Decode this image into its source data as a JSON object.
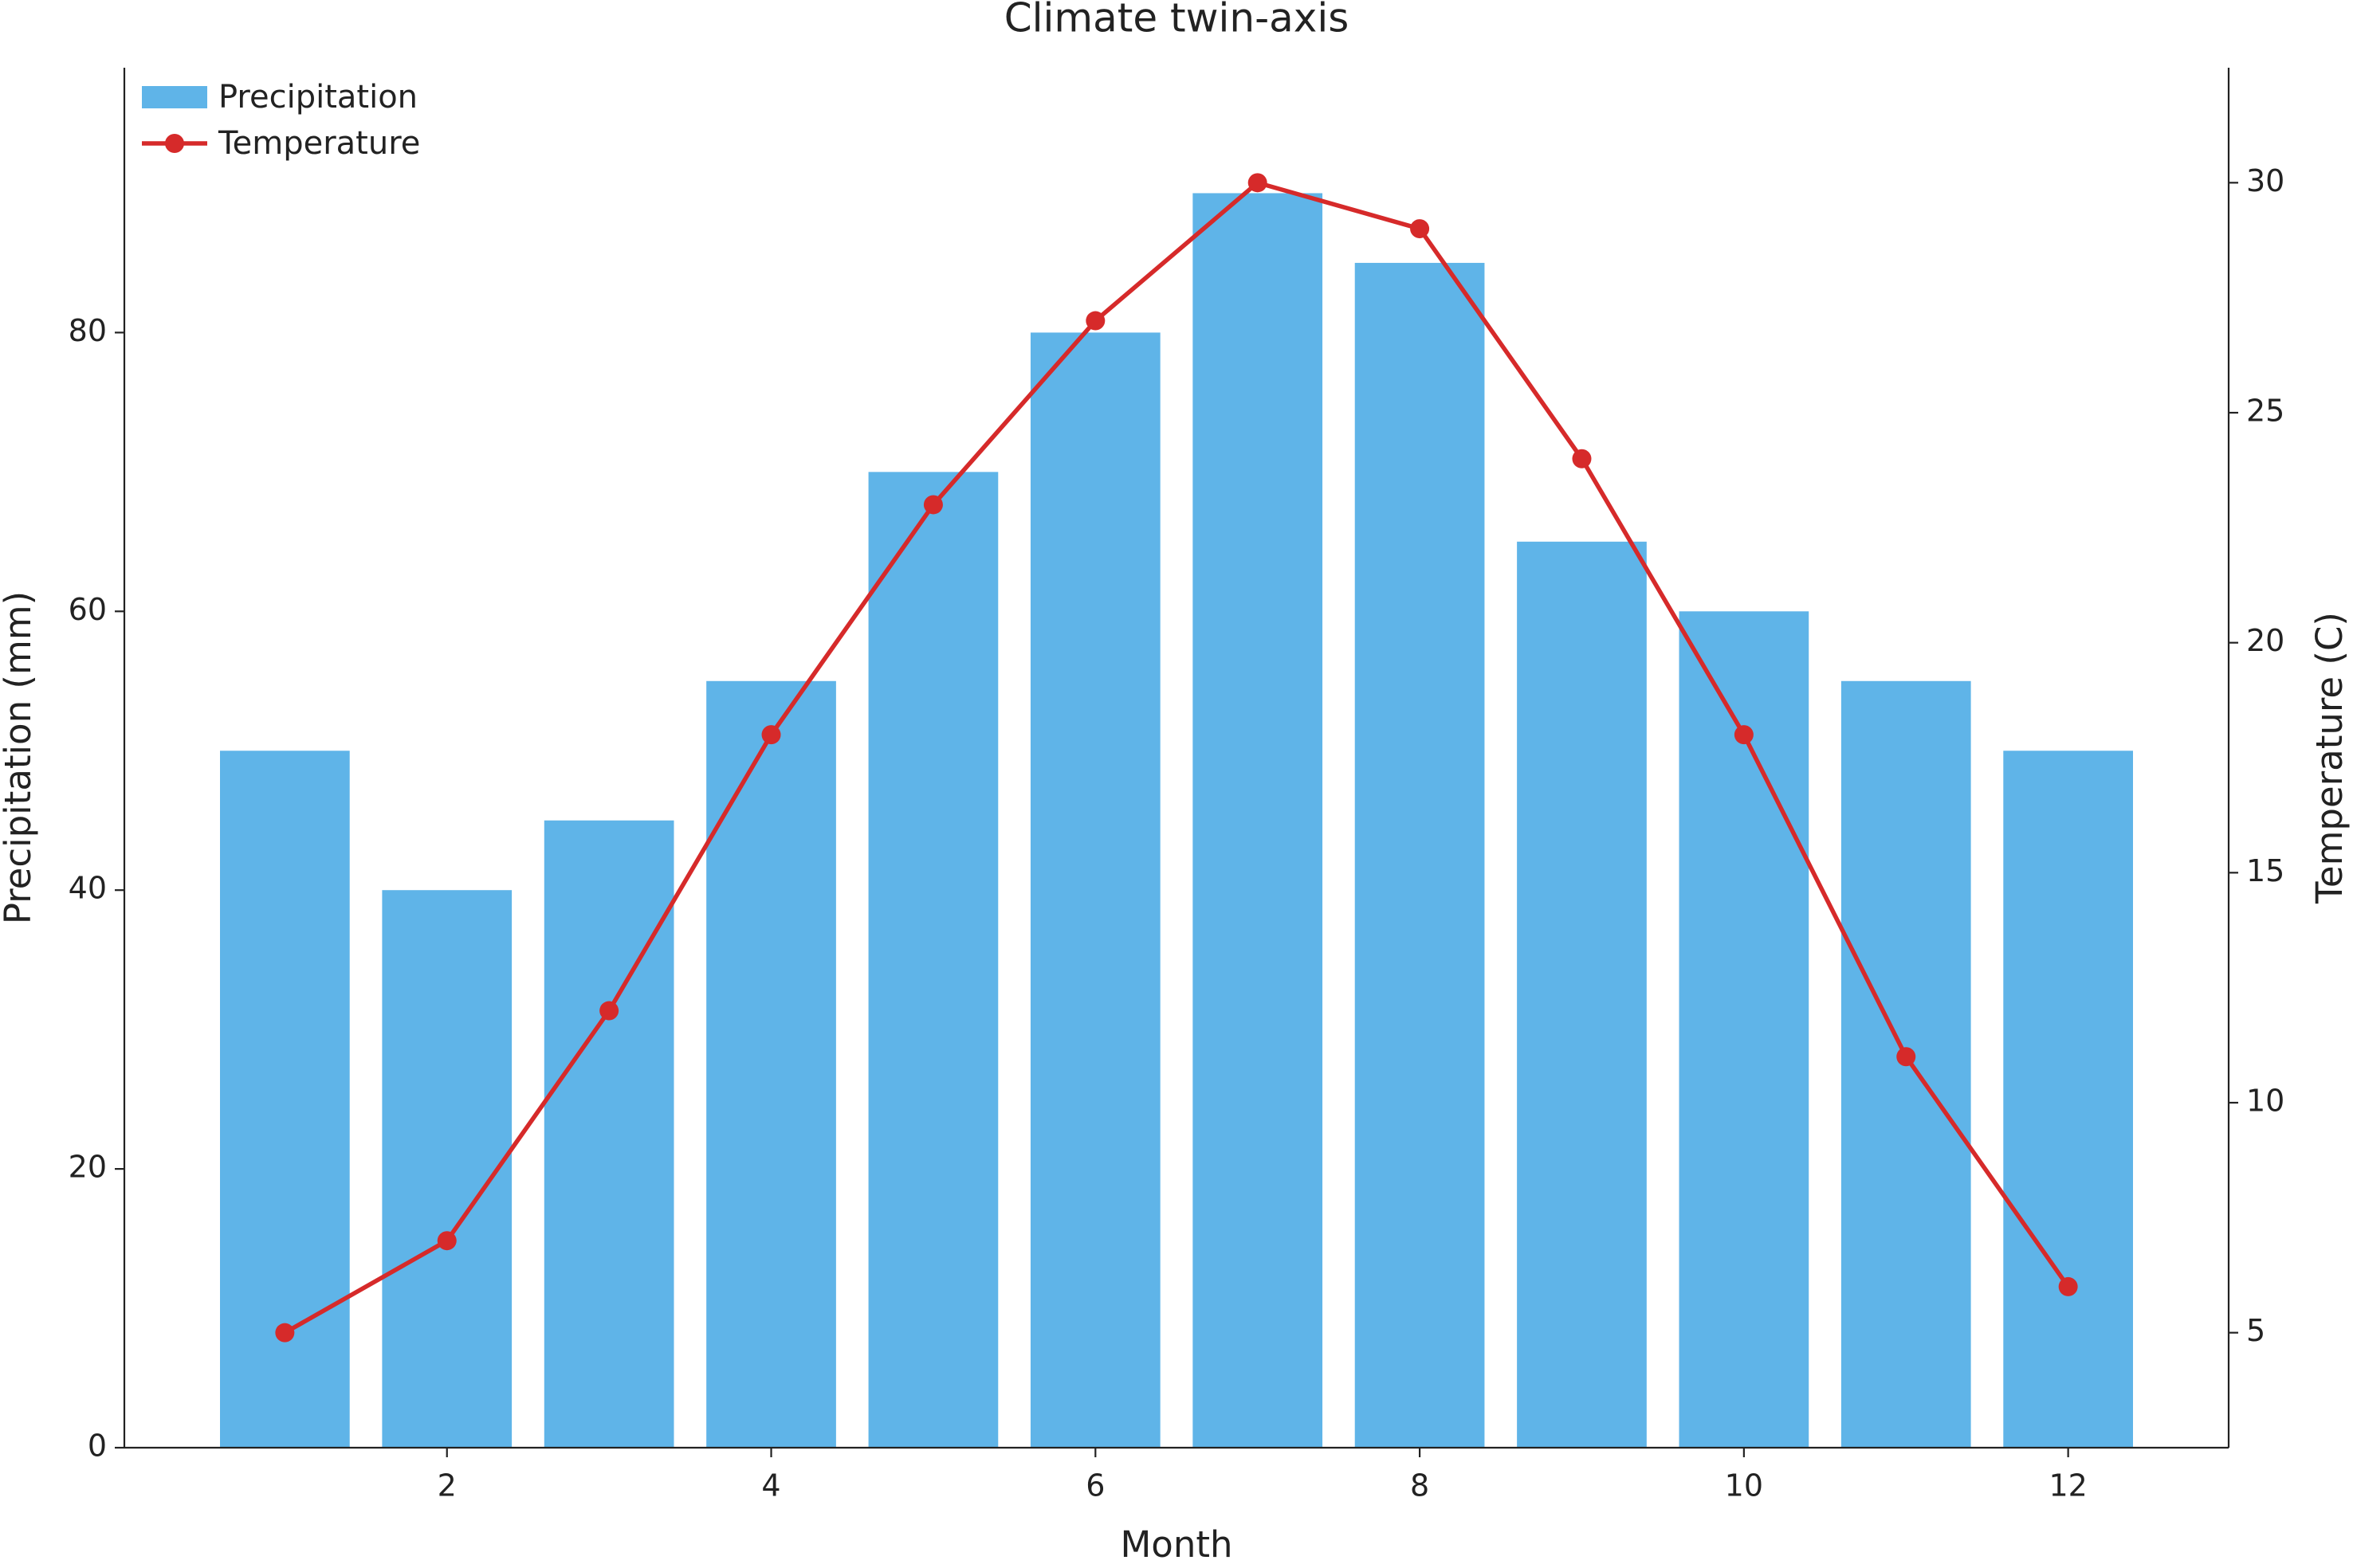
{
  "chart_data": {
    "type": "bar-line",
    "title": "Climate twin-axis",
    "xlabel": "Month",
    "ylabel": "Precipitation (mm)",
    "y2label": "Temperature (C)",
    "x": [
      1,
      2,
      3,
      4,
      5,
      6,
      7,
      8,
      9,
      10,
      11,
      12
    ],
    "series": [
      {
        "name": "Precipitation",
        "type": "bar",
        "color": "#5fb4e8",
        "values": [
          50,
          40,
          45,
          55,
          70,
          80,
          90,
          85,
          65,
          60,
          55,
          50
        ]
      },
      {
        "name": "Temperature",
        "type": "line",
        "axis": "y2",
        "color": "#d62a2a",
        "values": [
          5,
          7,
          12,
          18,
          23,
          27,
          30,
          29,
          24,
          18,
          11,
          6
        ]
      }
    ],
    "xlim": [
      0.01,
      12.99
    ],
    "xticks": [
      2,
      4,
      6,
      8,
      10,
      12
    ],
    "ylim": [
      0,
      99
    ],
    "yticks": [
      0,
      20,
      40,
      60,
      80
    ],
    "y2lim": [
      2.5,
      32.5
    ],
    "y2ticks": [
      5,
      10,
      15,
      20,
      25,
      30
    ],
    "grid": false,
    "legend": "upper left"
  }
}
